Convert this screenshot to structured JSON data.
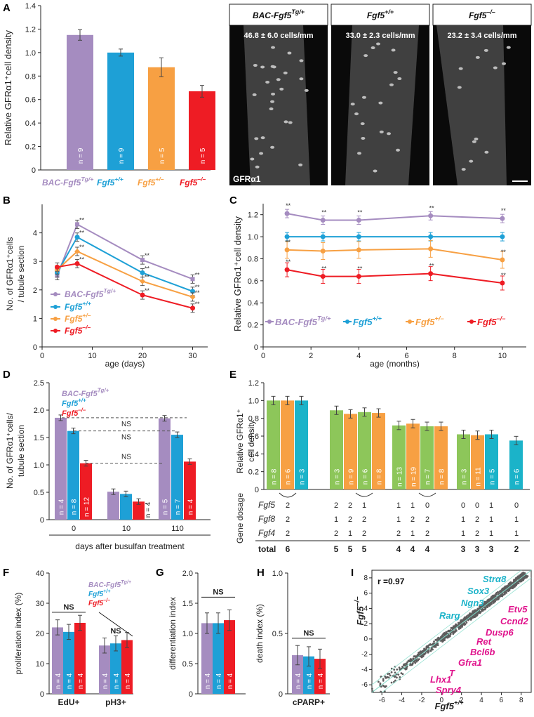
{
  "colors": {
    "tg": "#a58cc0",
    "wt": "#1ea0d6",
    "het": "#f7a043",
    "ko": "#ee1c24",
    "green": "#8dc65a",
    "orange": "#f7a043",
    "cyan": "#1bb3c9",
    "gray": "#777777"
  },
  "panelA": {
    "letter": "A",
    "ylabel": "Relative GFRα1⁺cell density",
    "yticks": [
      "0",
      "0.2",
      "0.4",
      "0.6",
      "0.8",
      "1.0",
      "1.2",
      "1.4"
    ],
    "chart_data": {
      "type": "bar",
      "ylim": [
        0,
        1.4
      ],
      "values": [
        1.15,
        1.0,
        0.875,
        0.67
      ],
      "errors": [
        0.045,
        0.03,
        0.08,
        0.05
      ],
      "n": [
        "n = 9",
        "n = 9",
        "n = 5",
        "n = 5"
      ],
      "labels": [
        {
          "base": "BAC-Fgf5",
          "sup": "Tg/+"
        },
        {
          "base": "Fgf5",
          "sup": "+/+"
        },
        {
          "base": "Fgf5",
          "sup": "+/–"
        },
        {
          "base": "Fgf5",
          "sup": "–/–"
        }
      ]
    },
    "images": [
      {
        "header": "BAC-Fgf5",
        "sup": "Tg/+",
        "caption": "46.8 ± 6.0 cells/mm"
      },
      {
        "header": "Fgf5",
        "sup": "+/+",
        "caption": "33.0 ± 2.3 cells/mm"
      },
      {
        "header": "Fgf5",
        "sup": "–/–",
        "caption": "23.2 ± 3.4 cells/mm"
      }
    ],
    "image_label": "GFRα1"
  },
  "panelB": {
    "letter": "B",
    "ylabel1": "No. of GFRα1⁺cells",
    "ylabel2": "/ tubule section",
    "xlabel": "age (days)",
    "yticks": [
      "0",
      "1",
      "2",
      "3",
      "4"
    ],
    "xticks": [
      "0",
      "10",
      "20",
      "30"
    ],
    "legend": [
      {
        "base": "BAC-Fgf5",
        "sup": "Tg/+"
      },
      {
        "base": "Fgf5",
        "sup": "+/+"
      },
      {
        "base": "Fgf5",
        "sup": "+/–"
      },
      {
        "base": "Fgf5",
        "sup": "–/–"
      }
    ],
    "star": "**",
    "chart_data": {
      "type": "line",
      "x": [
        3,
        7,
        20,
        30
      ],
      "xlim": [
        0,
        33
      ],
      "ylim": [
        0,
        5
      ],
      "series": [
        {
          "values": [
            2.5,
            4.3,
            3.05,
            2.38
          ]
        },
        {
          "values": [
            2.6,
            3.85,
            2.6,
            1.95
          ]
        },
        {
          "values": [
            2.7,
            3.35,
            2.3,
            1.75
          ]
        },
        {
          "values": [
            2.8,
            2.92,
            1.82,
            1.36
          ]
        }
      ]
    }
  },
  "panelC": {
    "letter": "C",
    "ylabel": "Relative GFRα1⁺cell density",
    "xlabel": "age (months)",
    "yticks": [
      "0",
      "0.2",
      "0.4",
      "0.6",
      "0.8",
      "1.0",
      "1.2"
    ],
    "xticks": [
      "0",
      "2",
      "4",
      "6",
      "8",
      "10"
    ],
    "legend": [
      {
        "base": "BAC-Fgf5",
        "sup": "Tg/+"
      },
      {
        "base": "Fgf5",
        "sup": "+/+"
      },
      {
        "base": "Fgf5",
        "sup": "+/–"
      },
      {
        "base": "Fgf5",
        "sup": "–/–"
      }
    ],
    "star": "**",
    "chart_data": {
      "type": "line",
      "x": [
        1,
        2.5,
        4,
        7,
        10
      ],
      "xlim": [
        0,
        11
      ],
      "ylim": [
        0,
        1.3
      ],
      "series": [
        {
          "values": [
            1.21,
            1.15,
            1.15,
            1.19,
            1.165
          ]
        },
        {
          "values": [
            1.0,
            1.0,
            1.0,
            1.0,
            1.0
          ]
        },
        {
          "values": [
            0.88,
            0.87,
            0.88,
            0.89,
            0.79
          ]
        },
        {
          "values": [
            0.7,
            0.64,
            0.64,
            0.665,
            0.58
          ]
        }
      ]
    }
  },
  "panelD": {
    "letter": "D",
    "ylabel1": "No. of GFRα1⁺cells/",
    "ylabel2": "tubule section",
    "xlabel": "days after busulfan treatment",
    "yticks": [
      "0",
      "0.5",
      "1.0",
      "1.5",
      "2.0",
      "2.5"
    ],
    "groups": [
      "0",
      "10",
      "110"
    ],
    "ns": "NS",
    "legend": [
      {
        "base": "BAC-Fgf5",
        "sup": "Tg/+"
      },
      {
        "base": "Fgf5",
        "sup": "+/+"
      },
      {
        "base": "Fgf5",
        "sup": "–/–"
      }
    ],
    "chart_data": {
      "type": "bar",
      "ylim": [
        0,
        2.5
      ],
      "values": [
        [
          1.86,
          1.62,
          1.03
        ],
        [
          0.51,
          0.47,
          0.33
        ],
        [
          1.85,
          1.55,
          1.06
        ]
      ],
      "n": [
        [
          "n = 4",
          "n = 8",
          "n = 12"
        ],
        [
          "",
          "",
          ""
        ],
        [
          "n = 5",
          "n = 7",
          "n = 4"
        ]
      ],
      "outsideN": "n = 4"
    }
  },
  "panelE": {
    "letter": "E",
    "ylabel1": "Relative GFRα1⁺",
    "ylabel2": "cell density",
    "yticks": [
      "0",
      "0.2",
      "0.4",
      "0.6",
      "0.8",
      "1.0",
      "1.2"
    ],
    "genes": [
      "Fgf5",
      "Fgf8",
      "Fgf4"
    ],
    "gene_dosage": "Gene dosage",
    "total_label": "total",
    "chart_data": {
      "type": "bar",
      "ylim": [
        0,
        1.2
      ],
      "bars": [
        {
          "v": 1.0,
          "c": "green",
          "n": "n = 8"
        },
        {
          "v": 1.0,
          "c": "orange",
          "n": "n = 6"
        },
        {
          "v": 1.0,
          "c": "cyan",
          "n": "n = 3"
        },
        {
          "v": 0.89,
          "c": "green",
          "n": "n = 3"
        },
        {
          "v": 0.85,
          "c": "orange",
          "n": "n = 9"
        },
        {
          "v": 0.87,
          "c": "green",
          "n": "n = 6"
        },
        {
          "v": 0.86,
          "c": "orange",
          "n": "n = 8"
        },
        {
          "v": 0.72,
          "c": "green",
          "n": "n = 13"
        },
        {
          "v": 0.74,
          "c": "orange",
          "n": "n = 19"
        },
        {
          "v": 0.71,
          "c": "green",
          "n": "n = 7"
        },
        {
          "v": 0.71,
          "c": "orange",
          "n": "n = 8"
        },
        {
          "v": 0.62,
          "c": "green",
          "n": "n = 3"
        },
        {
          "v": 0.61,
          "c": "orange",
          "n": "n = 11"
        },
        {
          "v": 0.62,
          "c": "cyan",
          "n": "n = 5"
        },
        {
          "v": 0.55,
          "c": "cyan",
          "n": "n = 6"
        }
      ]
    },
    "rows": {
      "fgf5": [
        "2",
        "2",
        "2",
        "1",
        "1",
        "1",
        "0",
        "0",
        "0",
        "1",
        "0"
      ],
      "fgf8": [
        "2",
        "1",
        "2",
        "2",
        "1",
        "2",
        "2",
        "1",
        "2",
        "1",
        "1"
      ],
      "fgf4": [
        "2",
        "2",
        "1",
        "2",
        "2",
        "1",
        "2",
        "1",
        "2",
        "1",
        "1"
      ],
      "total": [
        "6",
        "5",
        "5",
        "5",
        "4",
        "4",
        "4",
        "3",
        "3",
        "3",
        "2"
      ]
    }
  },
  "panelF": {
    "letter": "F",
    "ylabel": "proliferation index (%)",
    "yticks": [
      "0",
      "10",
      "20",
      "30",
      "40"
    ],
    "groups": [
      "EdU+",
      "pH3+"
    ],
    "ns": "NS",
    "legend": [
      {
        "base": "BAC-Fgf5",
        "sup": "Tg/+"
      },
      {
        "base": "Fgf5",
        "sup": "+/+"
      },
      {
        "base": "Fgf5",
        "sup": "–/–"
      }
    ],
    "chart_data": {
      "type": "bar",
      "ylim": [
        0,
        40
      ],
      "values": [
        [
          22,
          20.5,
          23.5
        ],
        [
          16,
          16.7,
          17.8
        ]
      ],
      "n": [
        "n = 4",
        "n = 4",
        "n = 4"
      ]
    }
  },
  "panelG": {
    "letter": "G",
    "ylabel": "differentiation index",
    "yticks": [
      "0",
      "0.5",
      "1.0",
      "1.5",
      "2.0"
    ],
    "ns": "NS",
    "chart_data": {
      "type": "bar",
      "ylim": [
        0,
        2.0
      ],
      "values": [
        1.17,
        1.17,
        1.22
      ],
      "n": [
        "n = 4",
        "n = 4",
        "n = 4"
      ]
    }
  },
  "panelH": {
    "letter": "H",
    "ylabel": "death index (%)",
    "yticks": [
      "0",
      "0.5",
      "1.0"
    ],
    "group": "cPARP+",
    "ns": "NS",
    "chart_data": {
      "type": "bar",
      "ylim": [
        0,
        1.0
      ],
      "values": [
        0.32,
        0.31,
        0.29
      ],
      "n": [
        "n = 4",
        "n = 4",
        "n = 4"
      ]
    }
  },
  "panelI": {
    "letter": "I",
    "r": "r =0.97",
    "xlabel": {
      "base": "Fgf5",
      "sup": "+/+"
    },
    "ylabel": {
      "base": "Fgf5",
      "sup": "–/–"
    },
    "ticks": [
      "-6",
      "-4",
      "-2",
      "0",
      "2",
      "4",
      "6",
      "8"
    ],
    "genes_cyan": [
      "Strα8",
      "Sox3",
      "Ngn3",
      "Rarg"
    ],
    "genes_magenta": [
      "Etv5",
      "Ccnd2",
      "Dusp6",
      "Ret",
      "Bcl6b",
      "Gfra1",
      "T",
      "Lhx1",
      "Spry4"
    ]
  }
}
